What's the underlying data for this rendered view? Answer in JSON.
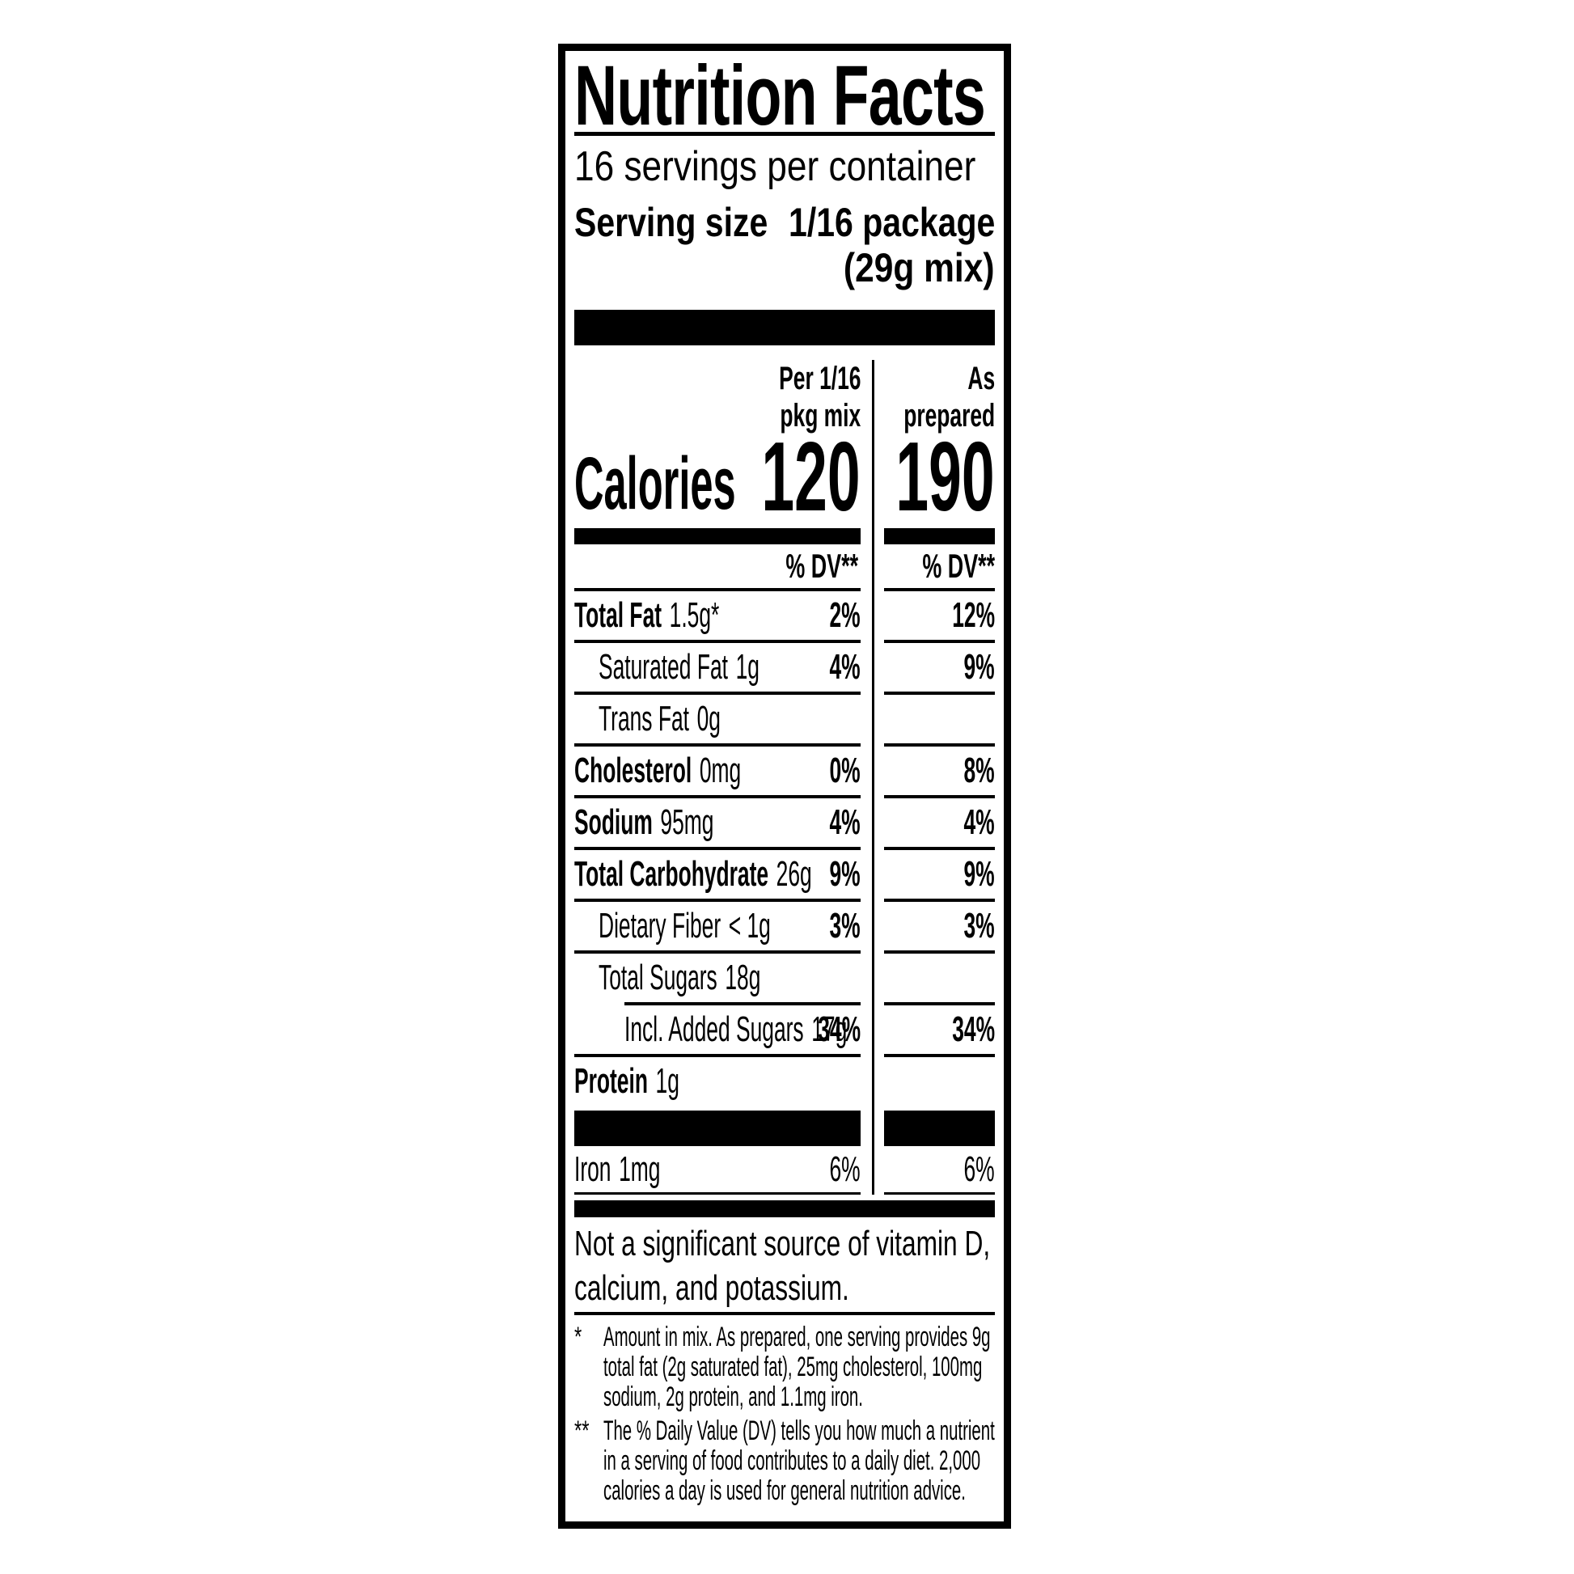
{
  "label": {
    "title": "Nutrition Facts",
    "servings_per_container": "16 servings per container",
    "serving_size_label": "Serving size",
    "serving_size_value": "1/16 package",
    "serving_size_value_line2": "(29g mix)",
    "columns": {
      "mix_header_line1": "Per 1/16",
      "mix_header_line2": "pkg mix",
      "prepared_header_line1": "As",
      "prepared_header_line2": "prepared"
    },
    "calories": {
      "label": "Calories",
      "per_mix": "120",
      "as_prepared": "190"
    },
    "dv_header_mix": "% DV**",
    "dv_header_prepared": "% DV**",
    "rows": [
      {
        "name": "Total Fat",
        "amount": "1.5g*",
        "dv_mix": "2%",
        "dv_prepared": "12%"
      },
      {
        "name": "Saturated Fat",
        "amount": "1g",
        "dv_mix": "4%",
        "dv_prepared": "9%"
      },
      {
        "name": "Trans Fat",
        "amount": "0g",
        "dv_mix": "",
        "dv_prepared": ""
      },
      {
        "name": "Cholesterol",
        "amount": "0mg",
        "dv_mix": "0%",
        "dv_prepared": "8%"
      },
      {
        "name": "Sodium",
        "amount": "95mg",
        "dv_mix": "4%",
        "dv_prepared": "4%"
      },
      {
        "name": "Total Carbohydrate",
        "amount": "26g",
        "dv_mix": "9%",
        "dv_prepared": "9%"
      },
      {
        "name": "Dietary Fiber",
        "amount": "< 1g",
        "dv_mix": "3%",
        "dv_prepared": "3%"
      },
      {
        "name": "Total Sugars",
        "amount": "18g",
        "dv_mix": "",
        "dv_prepared": ""
      },
      {
        "name": "Incl. Added Sugars",
        "amount": "17g",
        "dv_mix": "34%",
        "dv_prepared": "34%"
      },
      {
        "name": "Protein",
        "amount": "1g",
        "dv_mix": "",
        "dv_prepared": ""
      }
    ],
    "iron_row": {
      "name": "Iron",
      "amount": "1mg",
      "dv_mix": "6%",
      "dv_prepared": "6%"
    },
    "insignificant_note": "Not a significant source of vitamin D, calcium, and potassium.",
    "footnotes": [
      {
        "marker": "*",
        "text": "Amount in mix. As prepared, one serving provides 9g total fat (2g saturated fat), 25mg cholesterol, 100mg sodium, 2g protein, and 1.1mg iron."
      },
      {
        "marker": "**",
        "text": "The % Daily Value (DV) tells you how much a nutrient in a serving of food contributes to a daily diet. 2,000 calories a day is used for general nutrition advice."
      }
    ],
    "colors": {
      "ink": "#000000",
      "background": "#ffffff"
    }
  }
}
